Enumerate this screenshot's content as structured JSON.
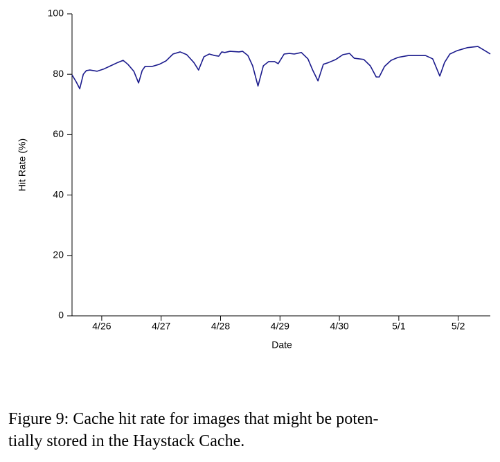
{
  "chart_data": {
    "type": "line",
    "xlabel": "Date",
    "ylabel": "Hit Rate (%)",
    "caption": [
      "Figure 9: Cache hit rate for images that might be poten-",
      "tially stored in the Haystack Cache."
    ],
    "x": [
      -0.5,
      -0.43,
      -0.37,
      -0.31,
      -0.26,
      -0.2,
      -0.08,
      0.03,
      0.15,
      0.27,
      0.36,
      0.44,
      0.54,
      0.62,
      0.68,
      0.73,
      0.85,
      0.97,
      1.08,
      1.2,
      1.32,
      1.43,
      1.55,
      1.63,
      1.72,
      1.81,
      1.9,
      1.97,
      2.02,
      2.07,
      2.16,
      2.31,
      2.37,
      2.46,
      2.54,
      2.63,
      2.72,
      2.81,
      2.91,
      2.97,
      3.07,
      3.16,
      3.24,
      3.36,
      3.47,
      3.55,
      3.64,
      3.73,
      3.82,
      3.94,
      4.06,
      4.17,
      4.25,
      4.41,
      4.52,
      4.62,
      4.67,
      4.76,
      4.87,
      4.99,
      5.16,
      5.34,
      5.45,
      5.57,
      5.69,
      5.77,
      5.86,
      5.98,
      6.15,
      6.33,
      6.45,
      6.54
    ],
    "series": [
      {
        "color": "#1a1a8c",
        "values": [
          79.8,
          77.5,
          75.2,
          80,
          81.2,
          81.4,
          81,
          81.7,
          82.8,
          83.9,
          84.6,
          83.3,
          81,
          77.1,
          81.2,
          82.6,
          82.6,
          83.3,
          84.4,
          86.7,
          87.4,
          86.5,
          83.9,
          81.4,
          85.8,
          86.7,
          86.2,
          86,
          87.4,
          87.2,
          87.6,
          87.4,
          87.6,
          86.2,
          82.8,
          76.1,
          82.8,
          84.2,
          84.2,
          83.5,
          86.7,
          86.9,
          86.7,
          87.2,
          85.1,
          81.4,
          77.8,
          83.3,
          83.9,
          84.9,
          86.5,
          86.9,
          85.3,
          84.9,
          82.8,
          79.1,
          79.1,
          82.6,
          84.6,
          85.6,
          86.2,
          86.2,
          86.2,
          85.1,
          79.4,
          83.9,
          86.7,
          87.8,
          88.8,
          89.2,
          87.8,
          86.7
        ]
      }
    ],
    "xlim": [
      -0.5,
      6.54
    ],
    "xticks": [
      {
        "value": 0,
        "label": "4/26"
      },
      {
        "value": 1,
        "label": "4/27"
      },
      {
        "value": 2,
        "label": "4/28"
      },
      {
        "value": 3,
        "label": "4/29"
      },
      {
        "value": 4,
        "label": "4/30"
      },
      {
        "value": 5,
        "label": "5/1"
      },
      {
        "value": 6,
        "label": "5/2"
      }
    ],
    "ylim": [
      0,
      100
    ],
    "yticks": [
      0,
      20,
      40,
      60,
      80,
      100
    ]
  }
}
